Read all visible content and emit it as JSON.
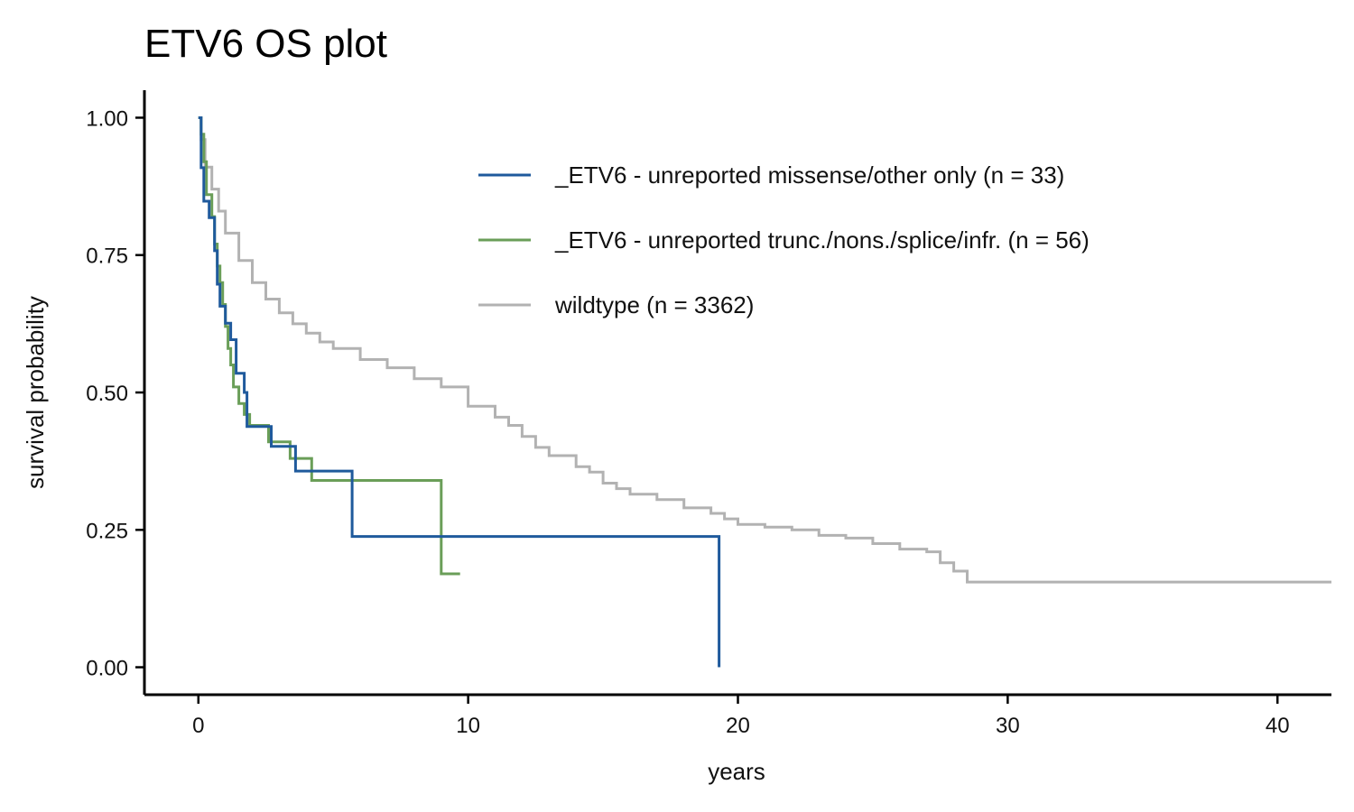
{
  "chart_data": {
    "type": "line",
    "step": true,
    "title": "ETV6 OS plot",
    "xlabel": "years",
    "ylabel": "survival probability",
    "xlim": [
      -2,
      42
    ],
    "ylim": [
      -0.05,
      1.05
    ],
    "x_ticks": [
      0,
      10,
      20,
      30,
      40
    ],
    "x_tick_labels": [
      "0",
      "10",
      "20",
      "30",
      "40"
    ],
    "y_ticks": [
      0,
      0.25,
      0.5,
      0.75,
      1.0
    ],
    "y_tick_labels": [
      "0.00",
      "0.25",
      "0.50",
      "0.75",
      "1.00"
    ],
    "grid": false,
    "legend_position": "top-right",
    "series": [
      {
        "name": "_ETV6 - unreported missense/other only (n = 33)",
        "color": "#1f5a9c",
        "x": [
          0,
          0.1,
          0.2,
          0.4,
          0.6,
          0.7,
          0.8,
          1.0,
          1.2,
          1.4,
          1.7,
          1.8,
          2.7,
          3.6,
          5.7,
          19.3,
          19.3
        ],
        "y": [
          1.0,
          0.909,
          0.848,
          0.818,
          0.758,
          0.697,
          0.657,
          0.626,
          0.596,
          0.535,
          0.5,
          0.438,
          0.402,
          0.357,
          0.238,
          0.238,
          0.0
        ]
      },
      {
        "name": "_ETV6 - unreported trunc./nons./splice/infr. (n = 56)",
        "color": "#6a9e58",
        "x": [
          0,
          0.1,
          0.2,
          0.3,
          0.5,
          0.6,
          0.7,
          0.8,
          0.9,
          1.0,
          1.1,
          1.2,
          1.3,
          1.5,
          1.7,
          1.9,
          2.0,
          2.6,
          3.4,
          4.2,
          9.0,
          9.7
        ],
        "y": [
          1.0,
          0.97,
          0.92,
          0.86,
          0.82,
          0.77,
          0.73,
          0.7,
          0.66,
          0.62,
          0.58,
          0.55,
          0.51,
          0.48,
          0.46,
          0.44,
          0.44,
          0.41,
          0.38,
          0.34,
          0.17,
          0.17
        ]
      },
      {
        "name": "wildtype (n = 3362)",
        "color": "#b2b2b2",
        "x": [
          0,
          0.1,
          0.25,
          0.5,
          0.75,
          1.0,
          1.5,
          2.0,
          2.5,
          3.0,
          3.5,
          4.0,
          4.5,
          5.0,
          6.0,
          7.0,
          8.0,
          9.0,
          10.0,
          11.0,
          11.5,
          12.0,
          12.5,
          13.0,
          14.0,
          14.5,
          15.0,
          15.5,
          16.0,
          17.0,
          18.0,
          19.0,
          19.5,
          20.0,
          21.0,
          22.0,
          23.0,
          24.0,
          25.0,
          26.0,
          27.0,
          27.5,
          28.0,
          28.5,
          29.0,
          30.0,
          35.0,
          40.0,
          42.0
        ],
        "y": [
          1.0,
          0.96,
          0.91,
          0.87,
          0.83,
          0.79,
          0.74,
          0.7,
          0.67,
          0.645,
          0.625,
          0.608,
          0.592,
          0.58,
          0.56,
          0.545,
          0.525,
          0.51,
          0.475,
          0.455,
          0.44,
          0.42,
          0.4,
          0.385,
          0.365,
          0.355,
          0.335,
          0.325,
          0.315,
          0.305,
          0.29,
          0.28,
          0.27,
          0.26,
          0.255,
          0.25,
          0.24,
          0.235,
          0.225,
          0.215,
          0.21,
          0.19,
          0.175,
          0.155,
          0.155,
          0.155,
          0.155,
          0.155,
          0.155
        ]
      }
    ]
  }
}
